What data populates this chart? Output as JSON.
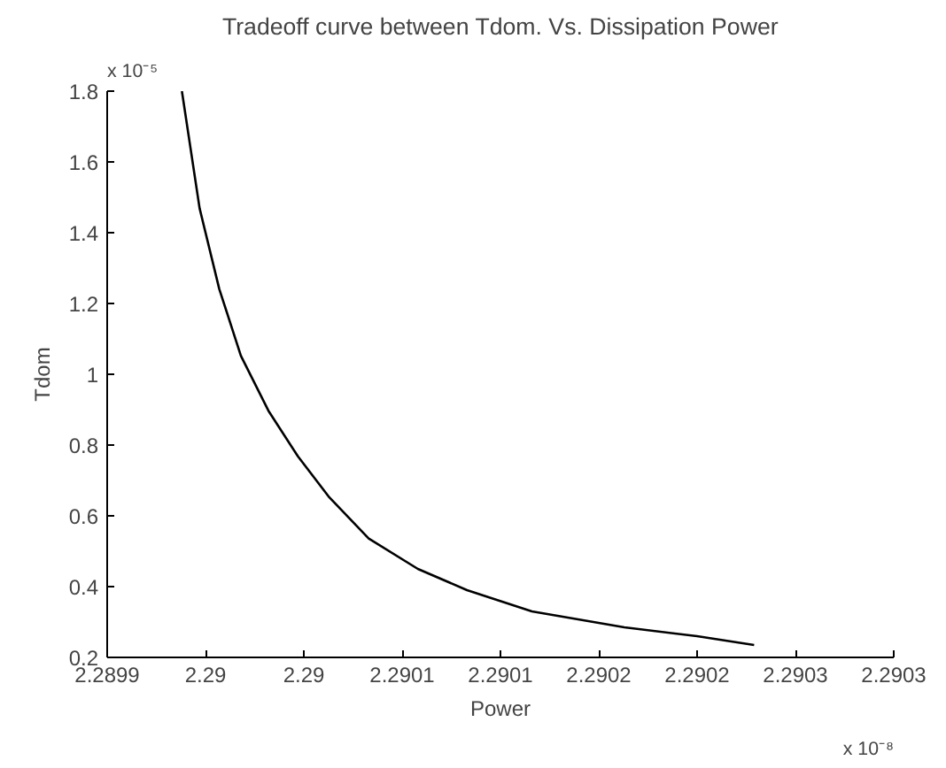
{
  "chart_data": {
    "type": "line",
    "title": "Tradeoff curve between Tdom. Vs. Dissipation Power",
    "xlabel": "Power",
    "ylabel": "Tdom",
    "annotations": [
      "x 10⁻⁵",
      "x 10⁻⁸"
    ],
    "x": [
      2.289988,
      2.289997,
      2.290007,
      2.290018,
      2.290032,
      2.290047,
      2.290063,
      2.290083,
      2.290108,
      2.290133,
      2.290166,
      2.290213,
      2.29025,
      2.290279
    ],
    "series": [
      {
        "color": "#000000",
        "values": [
          1.8,
          1.469,
          1.241,
          1.052,
          0.897,
          0.768,
          0.652,
          0.536,
          0.45,
          0.39,
          0.33,
          0.285,
          0.26,
          0.235
        ]
      }
    ],
    "xlim": [
      2.28995,
      2.29035
    ],
    "xticks": [
      {
        "value": 2.28995,
        "label": "2.2899"
      },
      {
        "value": 2.29,
        "label": "2.29"
      },
      {
        "value": 2.29005,
        "label": "2.29"
      },
      {
        "value": 2.2901,
        "label": "2.2901"
      },
      {
        "value": 2.29015,
        "label": "2.2901"
      },
      {
        "value": 2.2902,
        "label": "2.2902"
      },
      {
        "value": 2.29025,
        "label": "2.2902"
      },
      {
        "value": 2.2903,
        "label": "2.2903"
      },
      {
        "value": 2.29035,
        "label": "2.2903"
      }
    ],
    "ylim": [
      0.2,
      1.8
    ],
    "yticks": [
      0.2,
      0.4,
      0.6,
      0.8,
      1,
      1.2,
      1.4,
      1.6,
      1.8
    ],
    "grid": false,
    "marker": "none",
    "line_style": "solid"
  }
}
